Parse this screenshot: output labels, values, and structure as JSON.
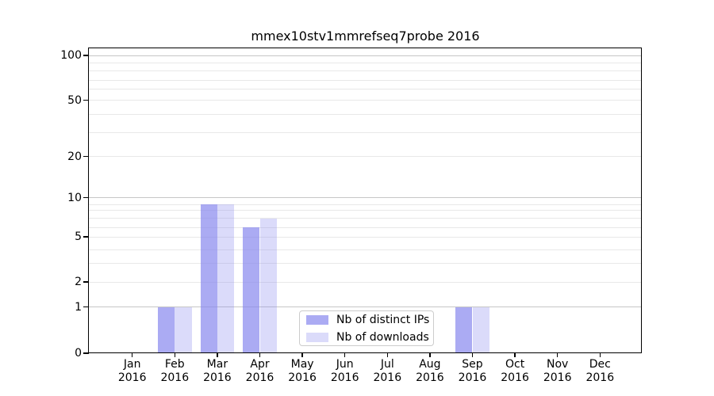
{
  "chart_data": {
    "type": "bar",
    "title": "mmex10stv1mmrefseq7probe 2016",
    "categories": [
      "Jan",
      "Feb",
      "Mar",
      "Apr",
      "May",
      "Jun",
      "Jul",
      "Aug",
      "Sep",
      "Oct",
      "Nov",
      "Dec"
    ],
    "category_year": "2016",
    "series": [
      {
        "name": "Nb of distinct IPs",
        "color": "#8888ee",
        "opacity": 0.7,
        "values": [
          0,
          1,
          9,
          6,
          0,
          0,
          0,
          0,
          1,
          0,
          0,
          0
        ]
      },
      {
        "name": "Nb of downloads",
        "color": "#8888ee",
        "opacity": 0.3,
        "values": [
          0,
          1,
          9,
          7,
          0,
          0,
          0,
          0,
          1,
          0,
          0,
          0
        ]
      }
    ],
    "ylim": [
      0,
      100
    ],
    "yticks": [
      0,
      1,
      2,
      5,
      10,
      20,
      50,
      100
    ],
    "major_gridlines": [
      1,
      10,
      100
    ],
    "minor_gridlines": [
      2,
      3,
      4,
      5,
      6,
      7,
      8,
      9,
      20,
      30,
      40,
      50,
      60,
      70,
      80,
      90
    ],
    "scale": "symlog",
    "grid": true,
    "legend": {
      "position": "lower center-left",
      "entries": [
        "Nb of distinct IPs",
        "Nb of downloads"
      ]
    },
    "colors": {
      "bar_base": "#8888ee",
      "major_grid": "#c6c6c6",
      "minor_grid": "#e8e8e8",
      "spine": "#000000",
      "background": "#ffffff"
    }
  }
}
